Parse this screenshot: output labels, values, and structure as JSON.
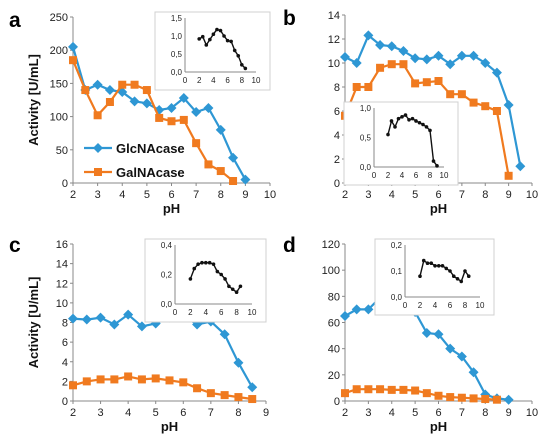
{
  "colors": {
    "glc": "#2e97d4",
    "gal": "#f07a1f",
    "inset": "#111111",
    "axis": "#888888",
    "grid": "#cccccc"
  },
  "legend": {
    "placement": "inside-left-bottom",
    "entries": [
      {
        "name": "GlcNAcase",
        "color": "#2e97d4",
        "marker": "diamond"
      },
      {
        "name": "GalNAcase",
        "color": "#f07a1f",
        "marker": "square"
      }
    ]
  },
  "chart_data": [
    {
      "panel": "a",
      "type": "line",
      "xlabel": "pH",
      "ylabel": "Activity [U/mL]",
      "xlim": [
        2,
        10
      ],
      "ylim": [
        0,
        250
      ],
      "xticks": [
        "2",
        "3",
        "4",
        "5",
        "6",
        "7",
        "8",
        "9",
        "10"
      ],
      "yticks": [
        "0",
        "50",
        "100",
        "150",
        "200",
        "250"
      ],
      "series": [
        {
          "name": "GlcNAcase",
          "x": [
            2,
            2.5,
            3,
            3.5,
            4,
            4.5,
            5,
            5.5,
            6,
            6.5,
            7,
            7.5,
            8,
            8.5,
            9
          ],
          "values": [
            205,
            140,
            148,
            140,
            137,
            123,
            120,
            110,
            113,
            128,
            107,
            113,
            80,
            38,
            5
          ]
        },
        {
          "name": "GalNAcase",
          "x": [
            2,
            2.5,
            3,
            3.5,
            4,
            4.5,
            5,
            5.5,
            6,
            6.5,
            7,
            7.5,
            8,
            8.5
          ],
          "values": [
            185,
            140,
            102,
            122,
            148,
            148,
            140,
            98,
            93,
            95,
            60,
            28,
            18,
            3
          ]
        }
      ],
      "inset": {
        "xlim": [
          0,
          10
        ],
        "ylim": [
          0,
          1.5
        ],
        "xticks": [
          "0",
          "2",
          "4",
          "6",
          "8",
          "10"
        ],
        "yticks": [
          "0,0",
          "0,5",
          "1,0",
          "1,5"
        ],
        "x": [
          2,
          2.5,
          3,
          3.5,
          4,
          4.5,
          5,
          5.5,
          6,
          6.5,
          7,
          7.5,
          8,
          8.5
        ],
        "values": [
          0.92,
          0.98,
          0.75,
          0.9,
          1.05,
          1.18,
          1.15,
          1.0,
          0.87,
          0.85,
          0.6,
          0.45,
          0.2,
          0.1
        ]
      }
    },
    {
      "panel": "b",
      "type": "line",
      "xlabel": "pH",
      "ylabel": "",
      "xlim": [
        2,
        10
      ],
      "ylim": [
        0,
        14
      ],
      "xticks": [
        "2",
        "3",
        "4",
        "5",
        "6",
        "7",
        "8",
        "9",
        "10"
      ],
      "yticks": [
        "0",
        "2",
        "4",
        "6",
        "8",
        "10",
        "12",
        "14"
      ],
      "series": [
        {
          "name": "GlcNAcase",
          "x": [
            2,
            2.5,
            3,
            3.5,
            4,
            4.5,
            5,
            5.5,
            6,
            6.5,
            7,
            7.5,
            8,
            8.5,
            9,
            9.5
          ],
          "values": [
            10.5,
            10.0,
            12.3,
            11.5,
            11.4,
            11.0,
            10.4,
            10.3,
            10.6,
            9.9,
            10.6,
            10.6,
            10.0,
            9.2,
            6.5,
            1.4
          ]
        },
        {
          "name": "GalNAcase",
          "x": [
            2,
            2.5,
            3,
            3.5,
            4,
            4.5,
            5,
            5.5,
            6,
            6.5,
            7,
            7.5,
            8,
            8.5,
            9
          ],
          "values": [
            5.6,
            8.0,
            8.0,
            9.6,
            9.9,
            9.9,
            8.3,
            8.4,
            8.5,
            7.4,
            7.4,
            6.7,
            6.4,
            6.0,
            0.6
          ]
        }
      ],
      "inset": {
        "xlim": [
          0,
          10
        ],
        "ylim": [
          0,
          1.0
        ],
        "xticks": [
          "0",
          "2",
          "4",
          "6",
          "8",
          "10"
        ],
        "yticks": [
          "0,0",
          "0,5",
          "1,0"
        ],
        "x": [
          2,
          2.5,
          3,
          3.5,
          4,
          4.5,
          5,
          5.5,
          6,
          6.5,
          7,
          7.5,
          8,
          8.5,
          9
        ],
        "values": [
          0.55,
          0.78,
          0.68,
          0.82,
          0.85,
          0.88,
          0.8,
          0.82,
          0.78,
          0.75,
          0.72,
          0.68,
          0.62,
          0.1,
          0.02
        ]
      }
    },
    {
      "panel": "c",
      "type": "line",
      "xlabel": "pH",
      "ylabel": "Activity [U/mL]",
      "xlim": [
        2,
        9
      ],
      "ylim": [
        0,
        16
      ],
      "xticks": [
        "2",
        "3",
        "4",
        "5",
        "6",
        "7",
        "8",
        "9"
      ],
      "yticks": [
        "0",
        "2",
        "4",
        "6",
        "8",
        "10",
        "12",
        "14",
        "16"
      ],
      "series": [
        {
          "name": "GlcNAcase",
          "x": [
            2,
            2.5,
            3,
            3.5,
            4,
            4.5,
            5,
            5.5,
            6,
            6.5,
            7,
            7.5,
            8,
            8.5
          ],
          "values": [
            8.4,
            8.3,
            8.5,
            7.8,
            8.8,
            7.6,
            7.9,
            8.5,
            8.7,
            7.8,
            8.1,
            6.8,
            3.9,
            1.4
          ]
        },
        {
          "name": "GalNAcase",
          "x": [
            2,
            2.5,
            3,
            3.5,
            4,
            4.5,
            5,
            5.5,
            6,
            6.5,
            7,
            7.5,
            8,
            8.5
          ],
          "values": [
            1.6,
            2.0,
            2.2,
            2.2,
            2.5,
            2.2,
            2.3,
            2.1,
            1.9,
            1.3,
            0.8,
            0.6,
            0.4,
            0.2
          ]
        }
      ],
      "inset": {
        "xlim": [
          0,
          10
        ],
        "ylim": [
          0,
          0.4
        ],
        "xticks": [
          "0",
          "2",
          "4",
          "6",
          "8",
          "10"
        ],
        "yticks": [
          "0,0",
          "0,2",
          "0,4"
        ],
        "x": [
          2,
          2.5,
          3,
          3.5,
          4,
          4.5,
          5,
          5.5,
          6,
          6.5,
          7,
          7.5,
          8,
          8.5
        ],
        "values": [
          0.17,
          0.24,
          0.27,
          0.28,
          0.28,
          0.28,
          0.27,
          0.22,
          0.2,
          0.17,
          0.12,
          0.1,
          0.08,
          0.12
        ]
      }
    },
    {
      "panel": "d",
      "type": "line",
      "xlabel": "pH",
      "ylabel": "",
      "xlim": [
        2,
        10
      ],
      "ylim": [
        0,
        120
      ],
      "xticks": [
        "2",
        "3",
        "4",
        "5",
        "6",
        "7",
        "8",
        "9",
        "10"
      ],
      "yticks": [
        "0",
        "20",
        "40",
        "60",
        "80",
        "100",
        "120"
      ],
      "series": [
        {
          "name": "GlcNAcase",
          "x": [
            2,
            2.5,
            3,
            3.5,
            4,
            4.5,
            5,
            5.5,
            6,
            6.5,
            7,
            7.5,
            8,
            8.5,
            9
          ],
          "values": [
            65,
            70,
            70,
            79,
            72,
            70,
            68,
            52,
            51,
            40,
            34,
            22,
            5,
            2,
            1
          ]
        },
        {
          "name": "GalNAcase",
          "x": [
            2,
            2.5,
            3,
            3.5,
            4,
            4.5,
            5,
            5.5,
            6,
            6.5,
            7,
            7.5,
            8,
            8.5
          ],
          "values": [
            6,
            9,
            9,
            9,
            8.5,
            8.5,
            8,
            6,
            4,
            3,
            2.5,
            2,
            1.5,
            1
          ]
        }
      ],
      "inset": {
        "xlim": [
          0,
          10
        ],
        "ylim": [
          0,
          0.2
        ],
        "xticks": [
          "0",
          "2",
          "4",
          "6",
          "8",
          "10"
        ],
        "yticks": [
          "0,0",
          "0,1",
          "0,2"
        ],
        "x": [
          2,
          2.5,
          3,
          3.5,
          4,
          4.5,
          5,
          5.5,
          6,
          6.5,
          7,
          7.5,
          8,
          8.5
        ],
        "values": [
          0.08,
          0.14,
          0.13,
          0.13,
          0.12,
          0.12,
          0.12,
          0.11,
          0.1,
          0.08,
          0.07,
          0.06,
          0.1,
          0.08
        ]
      }
    }
  ]
}
